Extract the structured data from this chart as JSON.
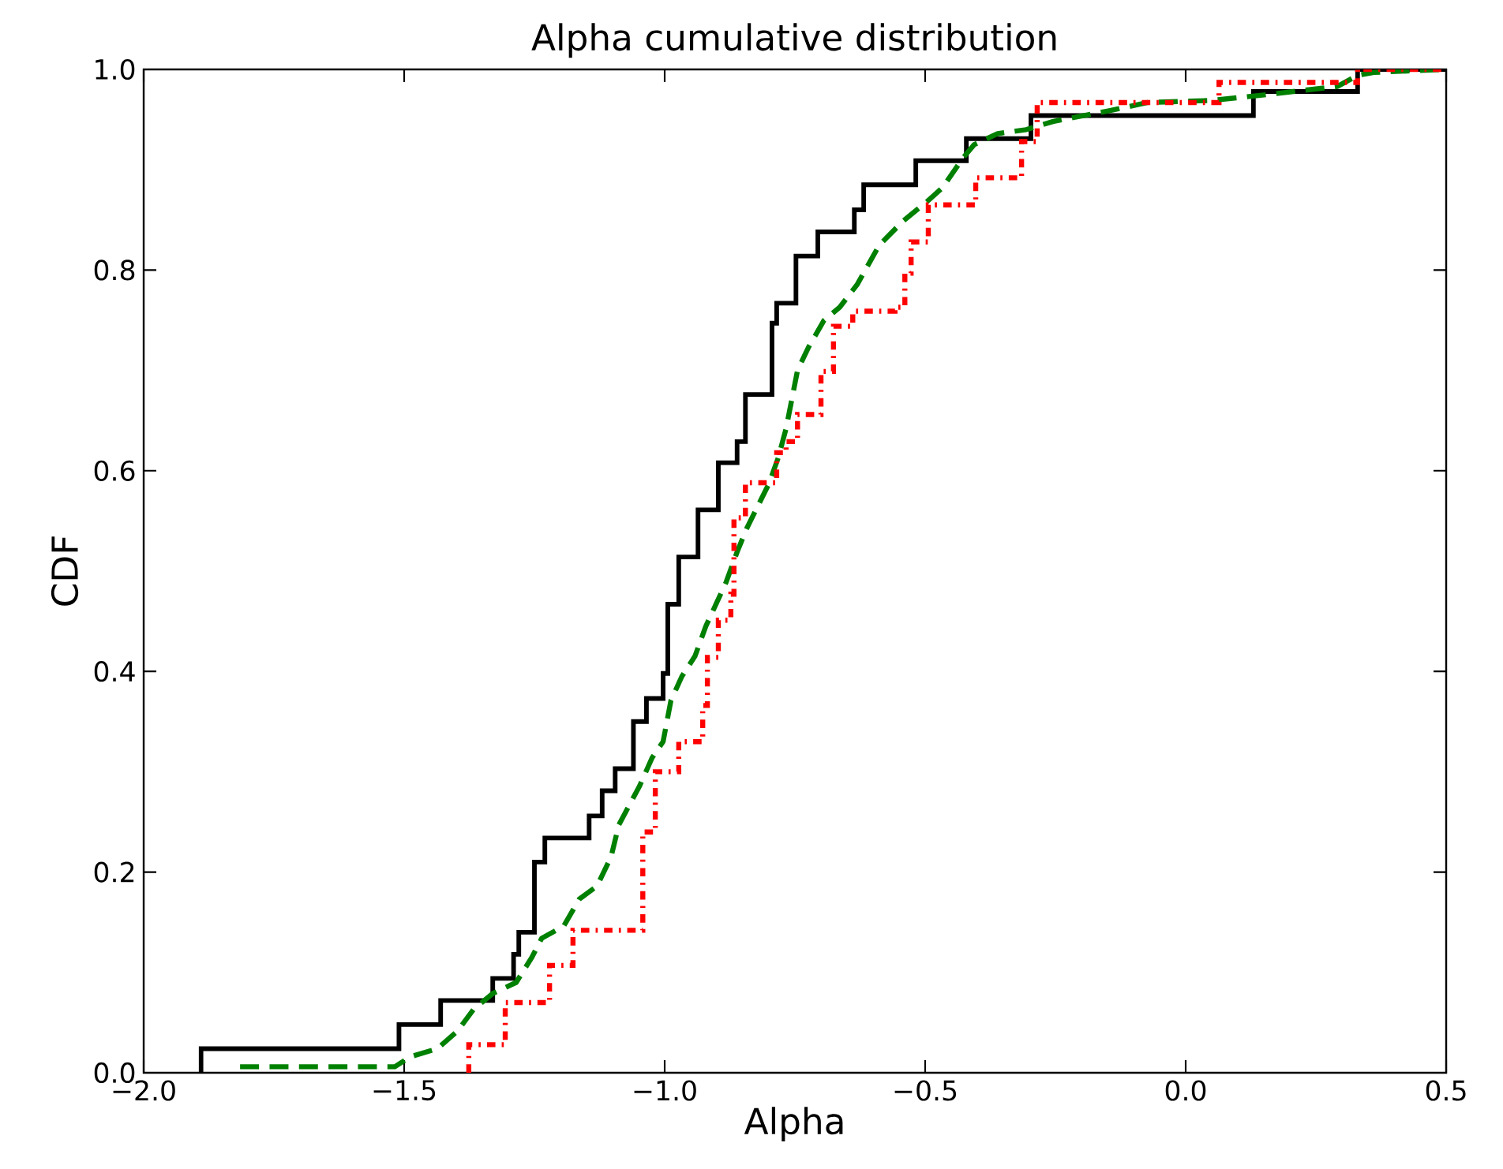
{
  "chart_data": {
    "type": "step",
    "title": "Alpha cumulative distribution",
    "xlabel": "Alpha",
    "ylabel": "CDF",
    "xlim": [
      -2.0,
      0.5
    ],
    "ylim": [
      0.0,
      1.0
    ],
    "xticks": [
      {
        "value": -2.0,
        "label": "−2.0"
      },
      {
        "value": -1.5,
        "label": "−1.5"
      },
      {
        "value": -1.0,
        "label": "−1.0"
      },
      {
        "value": -0.5,
        "label": "−0.5"
      },
      {
        "value": 0.0,
        "label": "0.0"
      },
      {
        "value": 0.5,
        "label": "0.5"
      }
    ],
    "yticks": [
      {
        "value": 0.0,
        "label": "0.0"
      },
      {
        "value": 0.2,
        "label": "0.2"
      },
      {
        "value": 0.4,
        "label": "0.4"
      },
      {
        "value": 0.6,
        "label": "0.6"
      },
      {
        "value": 0.8,
        "label": "0.8"
      },
      {
        "value": 1.0,
        "label": "1.0"
      }
    ],
    "series": [
      {
        "color": "#000000",
        "line_style": "solid",
        "x": [
          -1.89,
          -1.89,
          -1.51,
          -1.43,
          -1.33,
          -1.29,
          -1.28,
          -1.25,
          -1.23,
          -1.145,
          -1.12,
          -1.095,
          -1.06,
          -1.035,
          -1.003,
          -0.994,
          -0.973,
          -0.936,
          -0.897,
          -0.861,
          -0.845,
          -0.794,
          -0.785,
          -0.748,
          -0.706,
          -0.636,
          -0.618,
          -0.518,
          -0.421,
          -0.297,
          0.13,
          0.33,
          0.5
        ],
        "values": [
          0.0,
          0.024,
          0.048,
          0.072,
          0.094,
          0.118,
          0.14,
          0.21,
          0.234,
          0.256,
          0.281,
          0.303,
          0.35,
          0.373,
          0.398,
          0.467,
          0.514,
          0.561,
          0.608,
          0.629,
          0.676,
          0.747,
          0.767,
          0.814,
          0.838,
          0.86,
          0.885,
          0.909,
          0.931,
          0.954,
          0.978,
          1.0,
          1.0
        ]
      },
      {
        "type": "line",
        "color": "#008000",
        "line_style": "dashed",
        "x": [
          -1.815,
          -1.518,
          -1.488,
          -1.436,
          -1.397,
          -1.367,
          -1.33,
          -1.285,
          -1.255,
          -1.236,
          -1.194,
          -1.164,
          -1.13,
          -1.103,
          -1.088,
          -1.048,
          -1.024,
          -1.003,
          -0.988,
          -0.967,
          -0.942,
          -0.921,
          -0.882,
          -0.861,
          -0.842,
          -0.8,
          -0.782,
          -0.767,
          -0.745,
          -0.724,
          -0.694,
          -0.664,
          -0.63,
          -0.588,
          -0.542,
          -0.497,
          -0.467,
          -0.427,
          -0.406,
          -0.361,
          -0.306,
          -0.255,
          -0.145,
          -0.073,
          0.048,
          0.158,
          0.291,
          0.33,
          0.361,
          0.5
        ],
        "values": [
          0.006,
          0.006,
          0.016,
          0.024,
          0.042,
          0.063,
          0.079,
          0.09,
          0.115,
          0.134,
          0.146,
          0.173,
          0.186,
          0.215,
          0.247,
          0.286,
          0.314,
          0.33,
          0.371,
          0.395,
          0.415,
          0.445,
          0.489,
          0.519,
          0.543,
          0.587,
          0.613,
          0.642,
          0.7,
          0.723,
          0.75,
          0.763,
          0.786,
          0.825,
          0.849,
          0.868,
          0.882,
          0.912,
          0.925,
          0.936,
          0.94,
          0.948,
          0.959,
          0.967,
          0.969,
          0.975,
          0.983,
          0.994,
          0.997,
          1.0
        ]
      },
      {
        "color": "#ff0000",
        "line_style": "dotted",
        "x": [
          -1.376,
          -1.376,
          -1.306,
          -1.221,
          -1.176,
          -1.042,
          -1.018,
          -0.973,
          -0.927,
          -0.918,
          -0.897,
          -0.873,
          -0.867,
          -0.845,
          -0.785,
          -0.767,
          -0.745,
          -0.7,
          -0.676,
          -0.639,
          -0.558,
          -0.539,
          -0.527,
          -0.494,
          -0.403,
          -0.315,
          -0.285,
          0.064,
          0.33,
          0.5
        ],
        "values": [
          0.0,
          0.028,
          0.07,
          0.107,
          0.142,
          0.24,
          0.3,
          0.33,
          0.366,
          0.414,
          0.451,
          0.477,
          0.553,
          0.588,
          0.618,
          0.629,
          0.656,
          0.699,
          0.744,
          0.759,
          0.763,
          0.797,
          0.828,
          0.865,
          0.892,
          0.928,
          0.967,
          0.987,
          1.0,
          1.0
        ]
      }
    ]
  }
}
